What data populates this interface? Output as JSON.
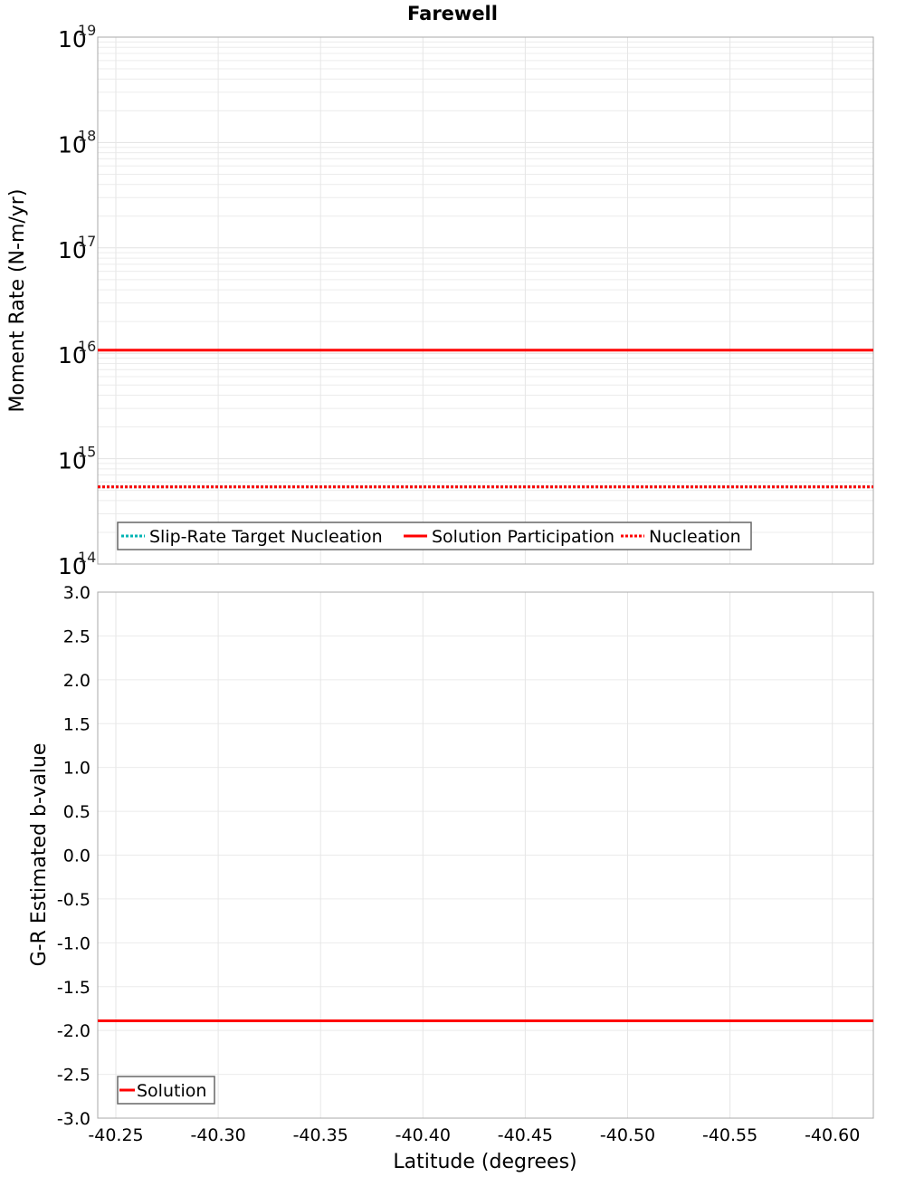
{
  "title": "Farewell",
  "chart_data": [
    {
      "type": "line",
      "title": "Farewell",
      "xlabel": "",
      "ylabel": "Moment Rate (N-m/yr)",
      "yscale": "log",
      "ylim": [
        100000000000000.0,
        1e+19
      ],
      "xlim": [
        -40.241,
        -40.62
      ],
      "x_ticks": [
        "-40.25",
        "-40.30",
        "-40.35",
        "-40.40",
        "-40.45",
        "-40.50",
        "-40.55",
        "-40.60"
      ],
      "y_ticks": [
        {
          "base": "10",
          "exp": "19",
          "value": 1e+19
        },
        {
          "base": "10",
          "exp": "18",
          "value": 1e+18
        },
        {
          "base": "10",
          "exp": "17",
          "value": 1e+17
        },
        {
          "base": "10",
          "exp": "16",
          "value": 1e+16
        },
        {
          "base": "10",
          "exp": "15",
          "value": 1000000000000000.0
        },
        {
          "base": "10",
          "exp": "14",
          "value": 100000000000000.0
        }
      ],
      "grid": true,
      "legend_position": "lower-left inside",
      "series": [
        {
          "name": "Slip-Rate Target Nucleation",
          "color": "#00b4b4",
          "style": "dotted",
          "x": [
            -40.241,
            -40.62
          ],
          "values": [
            540000000000000.0,
            540000000000000.0
          ]
        },
        {
          "name": "Solution Participation",
          "color": "#ff0000",
          "style": "solid",
          "x": [
            -40.241,
            -40.62
          ],
          "values": [
            1.07e+16,
            1.07e+16
          ]
        },
        {
          "name": "Nucleation",
          "color": "#ff0000",
          "style": "dotted",
          "x": [
            -40.241,
            -40.62
          ],
          "values": [
            540000000000000.0,
            540000000000000.0
          ]
        }
      ]
    },
    {
      "type": "line",
      "title": "",
      "xlabel": "Latitude (degrees)",
      "ylabel": "G-R Estimated b-value",
      "ylim": [
        -3.0,
        3.0
      ],
      "xlim": [
        -40.241,
        -40.62
      ],
      "x_ticks": [
        "-40.25",
        "-40.30",
        "-40.35",
        "-40.40",
        "-40.45",
        "-40.50",
        "-40.55",
        "-40.60"
      ],
      "y_ticks": [
        "3.0",
        "2.5",
        "2.0",
        "1.5",
        "1.0",
        "0.5",
        "0.0",
        "-0.5",
        "-1.0",
        "-1.5",
        "-2.0",
        "-2.5",
        "-3.0"
      ],
      "grid": true,
      "legend_position": "lower-left inside",
      "series": [
        {
          "name": "Solution",
          "color": "#ff0000",
          "style": "solid",
          "x": [
            -40.241,
            -40.62
          ],
          "values": [
            -1.89,
            -1.89
          ]
        }
      ]
    }
  ]
}
